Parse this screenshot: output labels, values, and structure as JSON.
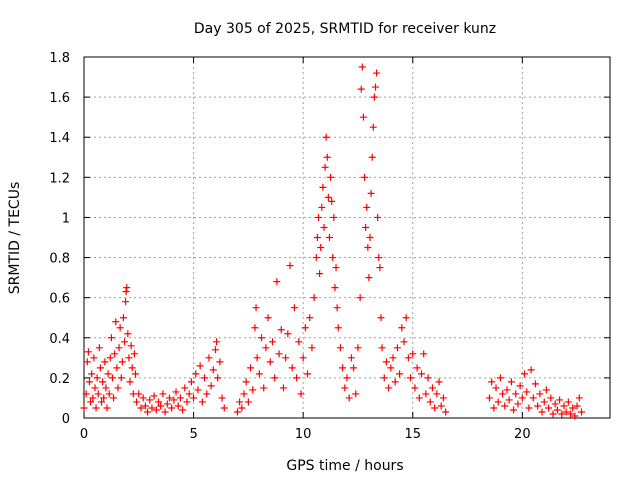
{
  "chart_data": {
    "type": "scatter",
    "title": "Day 305 of 2025, SRMTID for receiver kunz",
    "xlabel": "GPS time / hours",
    "ylabel": "SRMTID / TECUs",
    "xlim": [
      0,
      24
    ],
    "ylim": [
      0,
      1.8
    ],
    "xticks": [
      0,
      5,
      10,
      15,
      20
    ],
    "yticks": [
      0,
      0.2,
      0.4,
      0.6,
      0.8,
      1,
      1.2,
      1.4,
      1.6,
      1.8
    ],
    "xtick_labels": [
      "0",
      "5",
      "10",
      "15",
      "20"
    ],
    "ytick_labels": [
      "0",
      "0.2",
      "0.4",
      "0.6",
      "0.8",
      "1",
      "1.2",
      "1.4",
      "1.6",
      "1.8"
    ],
    "grid": true,
    "marker": "+",
    "color": "#ff0000",
    "series": [
      {
        "name": "SRMTID",
        "points": [
          [
            0.0,
            0.05
          ],
          [
            0.1,
            0.12
          ],
          [
            0.15,
            0.28
          ],
          [
            0.2,
            0.33
          ],
          [
            0.25,
            0.18
          ],
          [
            0.3,
            0.08
          ],
          [
            0.35,
            0.22
          ],
          [
            0.4,
            0.1
          ],
          [
            0.45,
            0.3
          ],
          [
            0.5,
            0.15
          ],
          [
            0.55,
            0.05
          ],
          [
            0.6,
            0.2
          ],
          [
            0.65,
            0.12
          ],
          [
            0.7,
            0.35
          ],
          [
            0.75,
            0.25
          ],
          [
            0.8,
            0.08
          ],
          [
            0.85,
            0.18
          ],
          [
            0.9,
            0.1
          ],
          [
            0.95,
            0.28
          ],
          [
            1.0,
            0.15
          ],
          [
            1.05,
            0.05
          ],
          [
            1.1,
            0.22
          ],
          [
            1.15,
            0.12
          ],
          [
            1.2,
            0.3
          ],
          [
            1.25,
            0.4
          ],
          [
            1.3,
            0.2
          ],
          [
            1.35,
            0.1
          ],
          [
            1.4,
            0.32
          ],
          [
            1.45,
            0.48
          ],
          [
            1.5,
            0.25
          ],
          [
            1.55,
            0.15
          ],
          [
            1.6,
            0.35
          ],
          [
            1.65,
            0.45
          ],
          [
            1.7,
            0.2
          ],
          [
            1.75,
            0.28
          ],
          [
            1.8,
            0.5
          ],
          [
            1.85,
            0.38
          ],
          [
            1.9,
            0.58
          ],
          [
            1.92,
            0.63
          ],
          [
            1.95,
            0.65
          ],
          [
            2.0,
            0.42
          ],
          [
            2.05,
            0.3
          ],
          [
            2.1,
            0.18
          ],
          [
            2.15,
            0.36
          ],
          [
            2.2,
            0.25
          ],
          [
            2.25,
            0.12
          ],
          [
            2.3,
            0.32
          ],
          [
            2.35,
            0.22
          ],
          [
            2.4,
            0.08
          ],
          [
            2.5,
            0.12
          ],
          [
            2.6,
            0.05
          ],
          [
            2.7,
            0.1
          ],
          [
            2.8,
            0.06
          ],
          [
            2.9,
            0.03
          ],
          [
            3.0,
            0.09
          ],
          [
            3.1,
            0.05
          ],
          [
            3.2,
            0.11
          ],
          [
            3.3,
            0.04
          ],
          [
            3.4,
            0.08
          ],
          [
            3.5,
            0.06
          ],
          [
            3.6,
            0.12
          ],
          [
            3.7,
            0.03
          ],
          [
            3.8,
            0.07
          ],
          [
            3.9,
            0.1
          ],
          [
            4.0,
            0.05
          ],
          [
            4.1,
            0.09
          ],
          [
            4.2,
            0.13
          ],
          [
            4.3,
            0.06
          ],
          [
            4.4,
            0.1
          ],
          [
            4.5,
            0.04
          ],
          [
            4.6,
            0.15
          ],
          [
            4.7,
            0.08
          ],
          [
            4.8,
            0.12
          ],
          [
            4.9,
            0.18
          ],
          [
            5.0,
            0.1
          ],
          [
            5.1,
            0.22
          ],
          [
            5.2,
            0.14
          ],
          [
            5.3,
            0.26
          ],
          [
            5.4,
            0.08
          ],
          [
            5.5,
            0.2
          ],
          [
            5.6,
            0.12
          ],
          [
            5.7,
            0.3
          ],
          [
            5.8,
            0.16
          ],
          [
            5.9,
            0.24
          ],
          [
            6.0,
            0.34
          ],
          [
            6.05,
            0.38
          ],
          [
            6.1,
            0.2
          ],
          [
            6.2,
            0.28
          ],
          [
            6.3,
            0.1
          ],
          [
            6.4,
            0.05
          ],
          [
            7.0,
            0.03
          ],
          [
            7.1,
            0.08
          ],
          [
            7.2,
            0.05
          ],
          [
            7.3,
            0.12
          ],
          [
            7.4,
            0.18
          ],
          [
            7.5,
            0.08
          ],
          [
            7.6,
            0.25
          ],
          [
            7.7,
            0.14
          ],
          [
            7.8,
            0.45
          ],
          [
            7.85,
            0.55
          ],
          [
            7.9,
            0.3
          ],
          [
            8.0,
            0.22
          ],
          [
            8.1,
            0.4
          ],
          [
            8.2,
            0.15
          ],
          [
            8.3,
            0.35
          ],
          [
            8.4,
            0.5
          ],
          [
            8.5,
            0.28
          ],
          [
            8.6,
            0.38
          ],
          [
            8.7,
            0.2
          ],
          [
            8.8,
            0.68
          ],
          [
            8.9,
            0.32
          ],
          [
            9.0,
            0.44
          ],
          [
            9.1,
            0.15
          ],
          [
            9.2,
            0.3
          ],
          [
            9.3,
            0.42
          ],
          [
            9.4,
            0.76
          ],
          [
            9.5,
            0.25
          ],
          [
            9.6,
            0.55
          ],
          [
            9.7,
            0.2
          ],
          [
            9.8,
            0.38
          ],
          [
            9.9,
            0.12
          ],
          [
            10.0,
            0.3
          ],
          [
            10.1,
            0.45
          ],
          [
            10.2,
            0.22
          ],
          [
            10.3,
            0.5
          ],
          [
            10.4,
            0.35
          ],
          [
            10.5,
            0.6
          ],
          [
            10.6,
            0.8
          ],
          [
            10.65,
            0.9
          ],
          [
            10.7,
            1.0
          ],
          [
            10.75,
            0.72
          ],
          [
            10.8,
            0.85
          ],
          [
            10.85,
            1.05
          ],
          [
            10.9,
            1.15
          ],
          [
            10.95,
            0.95
          ],
          [
            11.0,
            1.25
          ],
          [
            11.05,
            1.4
          ],
          [
            11.1,
            1.3
          ],
          [
            11.15,
            1.1
          ],
          [
            11.2,
            0.9
          ],
          [
            11.25,
            1.2
          ],
          [
            11.3,
            1.08
          ],
          [
            11.35,
            0.8
          ],
          [
            11.4,
            1.0
          ],
          [
            11.45,
            0.65
          ],
          [
            11.5,
            0.75
          ],
          [
            11.55,
            0.55
          ],
          [
            11.6,
            0.45
          ],
          [
            11.7,
            0.35
          ],
          [
            11.8,
            0.25
          ],
          [
            11.9,
            0.15
          ],
          [
            12.0,
            0.2
          ],
          [
            12.1,
            0.1
          ],
          [
            12.2,
            0.3
          ],
          [
            12.3,
            0.25
          ],
          [
            12.4,
            0.12
          ],
          [
            12.5,
            0.35
          ],
          [
            12.6,
            0.6
          ],
          [
            12.65,
            1.64
          ],
          [
            12.7,
            1.75
          ],
          [
            12.75,
            1.5
          ],
          [
            12.8,
            1.2
          ],
          [
            12.85,
            0.95
          ],
          [
            12.9,
            1.05
          ],
          [
            12.95,
            0.85
          ],
          [
            13.0,
            0.7
          ],
          [
            13.05,
            0.9
          ],
          [
            13.1,
            1.12
          ],
          [
            13.15,
            1.3
          ],
          [
            13.2,
            1.45
          ],
          [
            13.25,
            1.6
          ],
          [
            13.3,
            1.65
          ],
          [
            13.35,
            1.72
          ],
          [
            13.4,
            1.0
          ],
          [
            13.45,
            0.8
          ],
          [
            13.5,
            0.75
          ],
          [
            13.55,
            0.5
          ],
          [
            13.6,
            0.35
          ],
          [
            13.7,
            0.2
          ],
          [
            13.8,
            0.28
          ],
          [
            13.9,
            0.15
          ],
          [
            14.0,
            0.25
          ],
          [
            14.1,
            0.3
          ],
          [
            14.2,
            0.18
          ],
          [
            14.3,
            0.35
          ],
          [
            14.4,
            0.22
          ],
          [
            14.5,
            0.45
          ],
          [
            14.6,
            0.38
          ],
          [
            14.7,
            0.5
          ],
          [
            14.8,
            0.3
          ],
          [
            14.9,
            0.2
          ],
          [
            15.0,
            0.32
          ],
          [
            15.1,
            0.15
          ],
          [
            15.2,
            0.25
          ],
          [
            15.3,
            0.1
          ],
          [
            15.4,
            0.22
          ],
          [
            15.5,
            0.32
          ],
          [
            15.6,
            0.12
          ],
          [
            15.7,
            0.2
          ],
          [
            15.8,
            0.08
          ],
          [
            15.9,
            0.15
          ],
          [
            16.0,
            0.05
          ],
          [
            16.1,
            0.12
          ],
          [
            16.2,
            0.18
          ],
          [
            16.3,
            0.06
          ],
          [
            16.4,
            0.1
          ],
          [
            16.5,
            0.03
          ],
          [
            18.5,
            0.1
          ],
          [
            18.6,
            0.18
          ],
          [
            18.7,
            0.05
          ],
          [
            18.8,
            0.15
          ],
          [
            18.9,
            0.08
          ],
          [
            19.0,
            0.2
          ],
          [
            19.1,
            0.12
          ],
          [
            19.2,
            0.06
          ],
          [
            19.3,
            0.14
          ],
          [
            19.4,
            0.09
          ],
          [
            19.5,
            0.18
          ],
          [
            19.6,
            0.04
          ],
          [
            19.7,
            0.12
          ],
          [
            19.8,
            0.07
          ],
          [
            19.9,
            0.16
          ],
          [
            20.0,
            0.1
          ],
          [
            20.1,
            0.22
          ],
          [
            20.2,
            0.13
          ],
          [
            20.3,
            0.05
          ],
          [
            20.4,
            0.24
          ],
          [
            20.5,
            0.1
          ],
          [
            20.6,
            0.17
          ],
          [
            20.7,
            0.06
          ],
          [
            20.8,
            0.12
          ],
          [
            20.9,
            0.03
          ],
          [
            21.0,
            0.08
          ],
          [
            21.1,
            0.14
          ],
          [
            21.2,
            0.05
          ],
          [
            21.3,
            0.1
          ],
          [
            21.4,
            0.02
          ],
          [
            21.5,
            0.07
          ],
          [
            21.6,
            0.04
          ],
          [
            21.7,
            0.09
          ],
          [
            21.8,
            0.02
          ],
          [
            21.9,
            0.06
          ],
          [
            22.0,
            0.03
          ],
          [
            22.1,
            0.08
          ],
          [
            22.2,
            0.02
          ],
          [
            22.3,
            0.05
          ],
          [
            22.4,
            0.01
          ],
          [
            22.5,
            0.06
          ],
          [
            22.6,
            0.1
          ],
          [
            22.7,
            0.03
          ]
        ]
      }
    ]
  }
}
